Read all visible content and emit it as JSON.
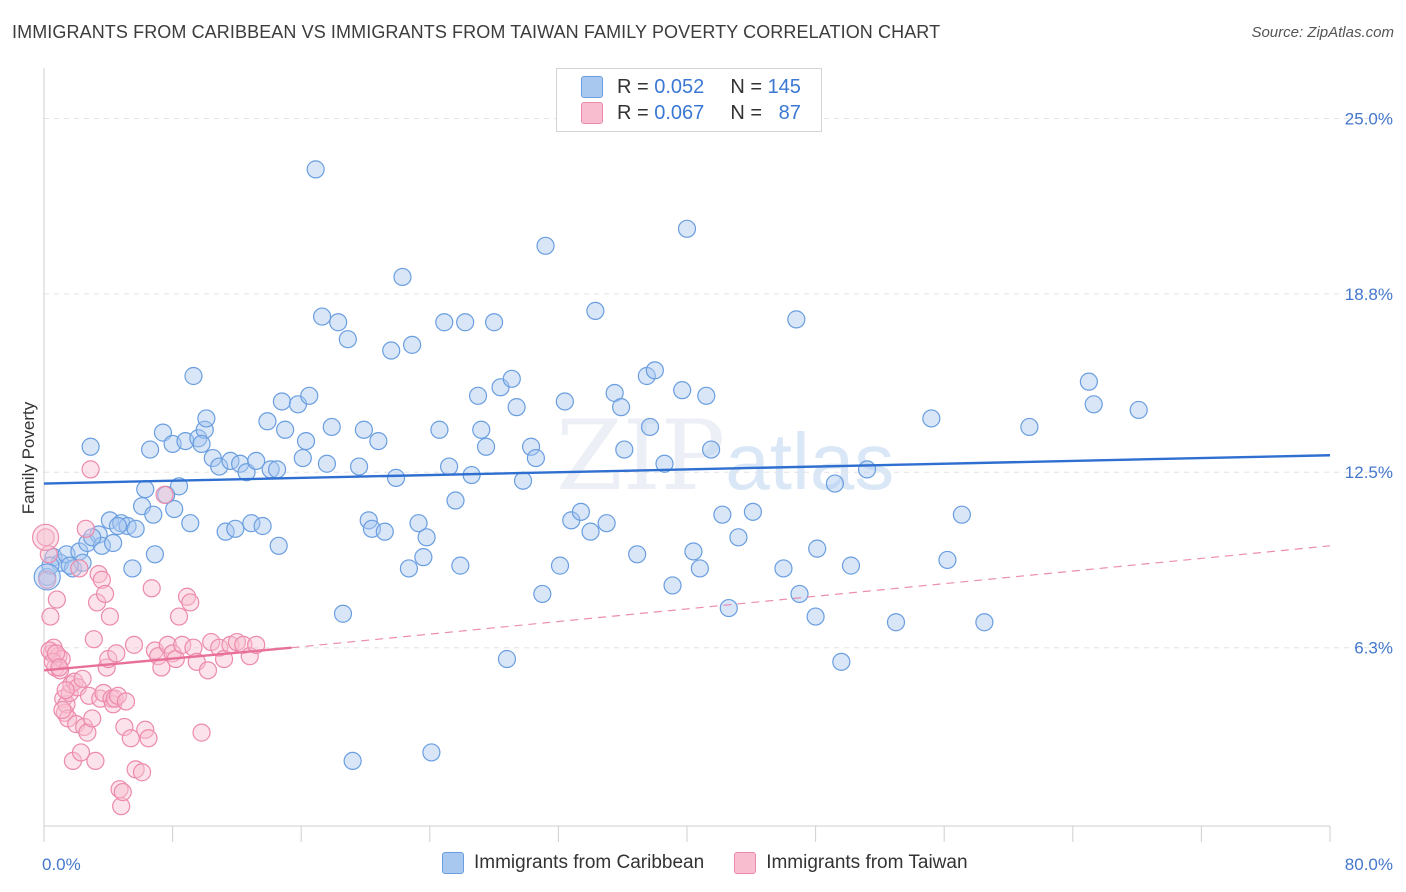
{
  "title": "IMMIGRANTS FROM CARIBBEAN VS IMMIGRANTS FROM TAIWAN FAMILY POVERTY CORRELATION CHART",
  "source": "Source: ZipAtlas.com",
  "watermark": {
    "zip": "ZIP",
    "atlas": "atlas"
  },
  "legend": {
    "rows": [
      {
        "r_label": "R = ",
        "r_value": "0.052",
        "n_label": "N = ",
        "n_value": "145",
        "color": "#a9c8f0",
        "border": "#6a9ee0"
      },
      {
        "r_label": "R = ",
        "r_value": "0.067",
        "n_label": "N = ",
        "n_value": "87",
        "color": "#f8bed0",
        "border": "#ec8aab"
      }
    ]
  },
  "bottom_legend": [
    {
      "label": "Immigrants from Caribbean",
      "color": "#a9c8f0",
      "border": "#6a9ee0"
    },
    {
      "label": "Immigrants from Taiwan",
      "color": "#f8bed0",
      "border": "#ec8aab"
    }
  ],
  "chart_data": {
    "type": "scatter",
    "title": "IMMIGRANTS FROM CARIBBEAN VS IMMIGRANTS FROM TAIWAN FAMILY POVERTY CORRELATION CHART",
    "xlabel": "",
    "ylabel": "Family Poverty",
    "xlim": [
      0,
      80
    ],
    "ylim": [
      0,
      26.5
    ],
    "x_tick_labels": [
      "0.0%",
      "80.0%"
    ],
    "y_ticks": [
      6.3,
      12.5,
      18.8,
      25.0
    ],
    "y_tick_labels": [
      "6.3%",
      "12.5%",
      "18.8%",
      "25.0%"
    ],
    "grid": "horizontal dashed",
    "legend_position": "top-center",
    "series": [
      {
        "name": "Immigrants from Caribbean",
        "color": "#6a9ee0",
        "fill": "rgba(169,200,240,0.45)",
        "trend": {
          "x": [
            0,
            80
          ],
          "y": [
            12.1,
            13.1
          ],
          "style": "solid",
          "color": "#2f6fd0"
        },
        "points": [
          [
            0.2,
            8.8
          ],
          [
            0.6,
            9.5
          ],
          [
            1.0,
            9.3
          ],
          [
            1.4,
            9.6
          ],
          [
            1.8,
            9.1
          ],
          [
            2.2,
            9.7
          ],
          [
            2.4,
            9.3
          ],
          [
            2.7,
            10.0
          ],
          [
            2.9,
            13.4
          ],
          [
            3.4,
            10.3
          ],
          [
            3.6,
            9.9
          ],
          [
            4.1,
            10.8
          ],
          [
            4.3,
            10.0
          ],
          [
            4.8,
            10.7
          ],
          [
            5.2,
            10.6
          ],
          [
            5.5,
            9.1
          ],
          [
            5.7,
            10.5
          ],
          [
            6.1,
            11.3
          ],
          [
            6.3,
            11.9
          ],
          [
            6.6,
            13.3
          ],
          [
            6.8,
            11.0
          ],
          [
            6.9,
            9.6
          ],
          [
            7.4,
            13.9
          ],
          [
            7.6,
            11.7
          ],
          [
            8.0,
            13.5
          ],
          [
            8.4,
            12.0
          ],
          [
            8.1,
            11.2
          ],
          [
            8.8,
            13.6
          ],
          [
            9.1,
            10.7
          ],
          [
            9.3,
            15.9
          ],
          [
            9.6,
            13.7
          ],
          [
            10.0,
            14.0
          ],
          [
            10.1,
            14.4
          ],
          [
            10.5,
            13.0
          ],
          [
            10.9,
            12.7
          ],
          [
            11.3,
            10.4
          ],
          [
            11.6,
            12.9
          ],
          [
            11.9,
            10.5
          ],
          [
            12.2,
            12.8
          ],
          [
            12.6,
            12.5
          ],
          [
            12.9,
            10.7
          ],
          [
            13.2,
            12.9
          ],
          [
            13.6,
            10.6
          ],
          [
            13.9,
            14.3
          ],
          [
            14.1,
            12.6
          ],
          [
            14.6,
            9.9
          ],
          [
            14.8,
            15.0
          ],
          [
            15.0,
            14.0
          ],
          [
            15.8,
            14.9
          ],
          [
            16.1,
            13.0
          ],
          [
            16.3,
            13.6
          ],
          [
            16.5,
            15.2
          ],
          [
            16.9,
            23.2
          ],
          [
            17.3,
            18.0
          ],
          [
            17.6,
            12.8
          ],
          [
            17.9,
            14.1
          ],
          [
            18.3,
            17.8
          ],
          [
            18.6,
            7.5
          ],
          [
            18.9,
            17.2
          ],
          [
            19.2,
            2.3
          ],
          [
            19.6,
            12.7
          ],
          [
            19.9,
            14.0
          ],
          [
            20.2,
            10.8
          ],
          [
            20.4,
            10.5
          ],
          [
            20.8,
            13.6
          ],
          [
            21.2,
            10.4
          ],
          [
            21.6,
            16.8
          ],
          [
            21.9,
            12.3
          ],
          [
            22.3,
            19.4
          ],
          [
            22.7,
            9.1
          ],
          [
            22.9,
            17.0
          ],
          [
            23.3,
            10.7
          ],
          [
            23.6,
            9.5
          ],
          [
            23.8,
            10.2
          ],
          [
            24.1,
            2.6
          ],
          [
            24.6,
            14.0
          ],
          [
            24.9,
            17.8
          ],
          [
            25.2,
            12.7
          ],
          [
            25.6,
            11.5
          ],
          [
            25.9,
            9.2
          ],
          [
            26.2,
            17.8
          ],
          [
            26.6,
            12.4
          ],
          [
            27.0,
            15.2
          ],
          [
            27.2,
            14.0
          ],
          [
            27.5,
            13.4
          ],
          [
            28.0,
            17.8
          ],
          [
            28.4,
            15.5
          ],
          [
            28.8,
            5.9
          ],
          [
            29.1,
            15.8
          ],
          [
            29.4,
            14.8
          ],
          [
            29.8,
            12.2
          ],
          [
            30.3,
            13.4
          ],
          [
            30.6,
            13.0
          ],
          [
            31.0,
            8.2
          ],
          [
            31.2,
            20.5
          ],
          [
            32.1,
            9.2
          ],
          [
            32.4,
            15.0
          ],
          [
            32.8,
            10.8
          ],
          [
            33.4,
            11.1
          ],
          [
            34.0,
            10.4
          ],
          [
            34.3,
            18.2
          ],
          [
            35.0,
            10.7
          ],
          [
            35.5,
            15.3
          ],
          [
            35.9,
            14.8
          ],
          [
            36.1,
            13.3
          ],
          [
            36.9,
            9.6
          ],
          [
            37.5,
            15.9
          ],
          [
            37.7,
            14.1
          ],
          [
            38.0,
            16.1
          ],
          [
            38.6,
            12.8
          ],
          [
            39.1,
            8.5
          ],
          [
            39.7,
            15.4
          ],
          [
            40.0,
            21.1
          ],
          [
            40.4,
            9.7
          ],
          [
            40.8,
            9.1
          ],
          [
            41.2,
            15.2
          ],
          [
            41.5,
            13.3
          ],
          [
            42.2,
            11.0
          ],
          [
            42.6,
            7.7
          ],
          [
            43.2,
            10.2
          ],
          [
            44.1,
            11.1
          ],
          [
            46.0,
            9.1
          ],
          [
            46.8,
            17.9
          ],
          [
            47.0,
            8.2
          ],
          [
            48.0,
            7.4
          ],
          [
            48.1,
            9.8
          ],
          [
            49.2,
            12.1
          ],
          [
            49.6,
            5.8
          ],
          [
            50.2,
            9.2
          ],
          [
            51.2,
            12.6
          ],
          [
            53.0,
            7.2
          ],
          [
            55.2,
            14.4
          ],
          [
            56.2,
            9.4
          ],
          [
            57.1,
            11.0
          ],
          [
            58.5,
            7.2
          ],
          [
            61.3,
            14.1
          ],
          [
            65.0,
            15.7
          ],
          [
            65.3,
            14.9
          ],
          [
            68.1,
            14.7
          ],
          [
            0.4,
            9.2
          ],
          [
            1.6,
            9.2
          ],
          [
            3.0,
            10.2
          ],
          [
            4.6,
            10.6
          ],
          [
            9.8,
            13.5
          ],
          [
            14.5,
            12.6
          ]
        ]
      },
      {
        "name": "Immigrants from Taiwan",
        "color": "#ec8aab",
        "fill": "rgba(248,190,208,0.45)",
        "trend": {
          "x": [
            0,
            15.4
          ],
          "y": [
            5.5,
            6.3
          ],
          "style": "solid",
          "color": "#e8719b",
          "extension": {
            "x": [
              15.4,
              80
            ],
            "y": [
              6.3,
              9.9
            ],
            "style": "dashed"
          }
        },
        "points": [
          [
            0.1,
            10.2
          ],
          [
            0.2,
            8.7
          ],
          [
            0.3,
            9.6
          ],
          [
            0.4,
            7.4
          ],
          [
            0.5,
            6.1
          ],
          [
            0.6,
            6.3
          ],
          [
            0.7,
            5.6
          ],
          [
            0.8,
            8.0
          ],
          [
            0.9,
            6.0
          ],
          [
            1.0,
            5.5
          ],
          [
            1.1,
            5.9
          ],
          [
            1.2,
            4.5
          ],
          [
            1.3,
            4.0
          ],
          [
            1.4,
            4.3
          ],
          [
            1.5,
            3.8
          ],
          [
            1.6,
            4.7
          ],
          [
            1.7,
            5.0
          ],
          [
            1.8,
            2.3
          ],
          [
            1.9,
            5.1
          ],
          [
            2.0,
            3.6
          ],
          [
            2.1,
            4.9
          ],
          [
            2.2,
            9.1
          ],
          [
            2.3,
            2.6
          ],
          [
            2.4,
            5.2
          ],
          [
            2.5,
            3.5
          ],
          [
            2.6,
            10.5
          ],
          [
            2.7,
            3.3
          ],
          [
            2.8,
            4.6
          ],
          [
            2.9,
            12.6
          ],
          [
            3.0,
            3.8
          ],
          [
            3.1,
            6.6
          ],
          [
            3.2,
            2.3
          ],
          [
            3.3,
            7.9
          ],
          [
            3.4,
            8.9
          ],
          [
            3.5,
            4.5
          ],
          [
            3.6,
            8.7
          ],
          [
            3.7,
            4.7
          ],
          [
            3.8,
            8.2
          ],
          [
            3.9,
            5.6
          ],
          [
            4.0,
            5.9
          ],
          [
            4.1,
            7.4
          ],
          [
            4.2,
            4.5
          ],
          [
            4.3,
            4.3
          ],
          [
            4.4,
            4.5
          ],
          [
            4.5,
            6.1
          ],
          [
            4.6,
            4.6
          ],
          [
            4.7,
            1.3
          ],
          [
            4.8,
            0.7
          ],
          [
            4.9,
            1.2
          ],
          [
            5.0,
            3.5
          ],
          [
            5.1,
            4.4
          ],
          [
            5.4,
            3.1
          ],
          [
            5.6,
            6.4
          ],
          [
            5.7,
            2.0
          ],
          [
            6.1,
            1.9
          ],
          [
            6.3,
            3.4
          ],
          [
            6.5,
            3.1
          ],
          [
            6.7,
            8.4
          ],
          [
            6.9,
            6.2
          ],
          [
            7.1,
            6.0
          ],
          [
            7.3,
            5.6
          ],
          [
            7.5,
            11.7
          ],
          [
            7.7,
            6.4
          ],
          [
            8.0,
            6.1
          ],
          [
            8.2,
            5.9
          ],
          [
            8.4,
            7.4
          ],
          [
            8.6,
            6.4
          ],
          [
            8.9,
            8.1
          ],
          [
            9.1,
            7.9
          ],
          [
            9.3,
            6.3
          ],
          [
            9.5,
            5.8
          ],
          [
            9.8,
            3.3
          ],
          [
            10.2,
            5.5
          ],
          [
            10.4,
            6.5
          ],
          [
            10.9,
            6.3
          ],
          [
            11.2,
            5.9
          ],
          [
            11.6,
            6.4
          ],
          [
            12.0,
            6.5
          ],
          [
            12.4,
            6.4
          ],
          [
            12.8,
            6.0
          ],
          [
            13.2,
            6.4
          ],
          [
            0.35,
            6.2
          ],
          [
            0.55,
            5.8
          ],
          [
            0.75,
            6.1
          ],
          [
            0.95,
            5.6
          ],
          [
            1.15,
            4.1
          ],
          [
            1.35,
            4.8
          ]
        ]
      }
    ]
  }
}
